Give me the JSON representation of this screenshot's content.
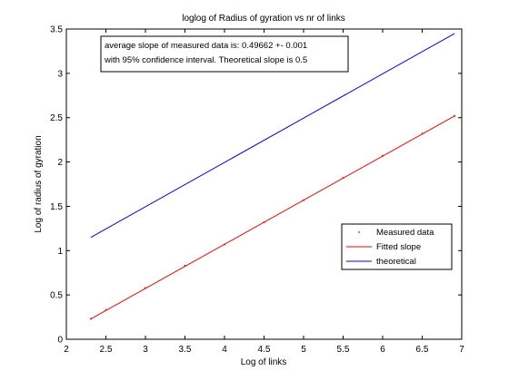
{
  "chart_data": {
    "type": "line",
    "title": "loglog of Radius of gyration vs nr of links",
    "xlabel": "Log of links",
    "ylabel": "Log of radius of gyration",
    "xlim": [
      2,
      7
    ],
    "ylim": [
      0,
      3.5
    ],
    "xticks": [
      "2",
      "2.5",
      "3",
      "3.5",
      "4",
      "4.5",
      "5",
      "5.5",
      "6",
      "6.5",
      "7"
    ],
    "yticks": [
      "0",
      "0.5",
      "1",
      "1.5",
      "2",
      "2.5",
      "3",
      "3.5"
    ],
    "grid": false,
    "legend_position": "center-right",
    "series": [
      {
        "name": "Measured data",
        "style": "points",
        "color": "#ff0000",
        "x": [
          2.31,
          2.5,
          3.0,
          3.5,
          4.0,
          4.5,
          5.0,
          5.5,
          6.0,
          6.5,
          6.91
        ],
        "y": [
          0.23,
          0.33,
          0.58,
          0.83,
          1.07,
          1.32,
          1.57,
          1.82,
          2.07,
          2.32,
          2.52
        ]
      },
      {
        "name": "Fitted slope",
        "style": "line",
        "color": "#ff0000",
        "x": [
          2.31,
          6.91
        ],
        "y": [
          0.23,
          2.52
        ]
      },
      {
        "name": "theoretical",
        "style": "line",
        "color": "#0000ff",
        "x": [
          2.31,
          6.91
        ],
        "y": [
          1.15,
          3.45
        ]
      }
    ],
    "annotation": {
      "line1": "average slope of measured data is: 0.49662 +- 0.001",
      "line2": "with 95% confidence interval. Theoretical slope is 0.5"
    }
  }
}
